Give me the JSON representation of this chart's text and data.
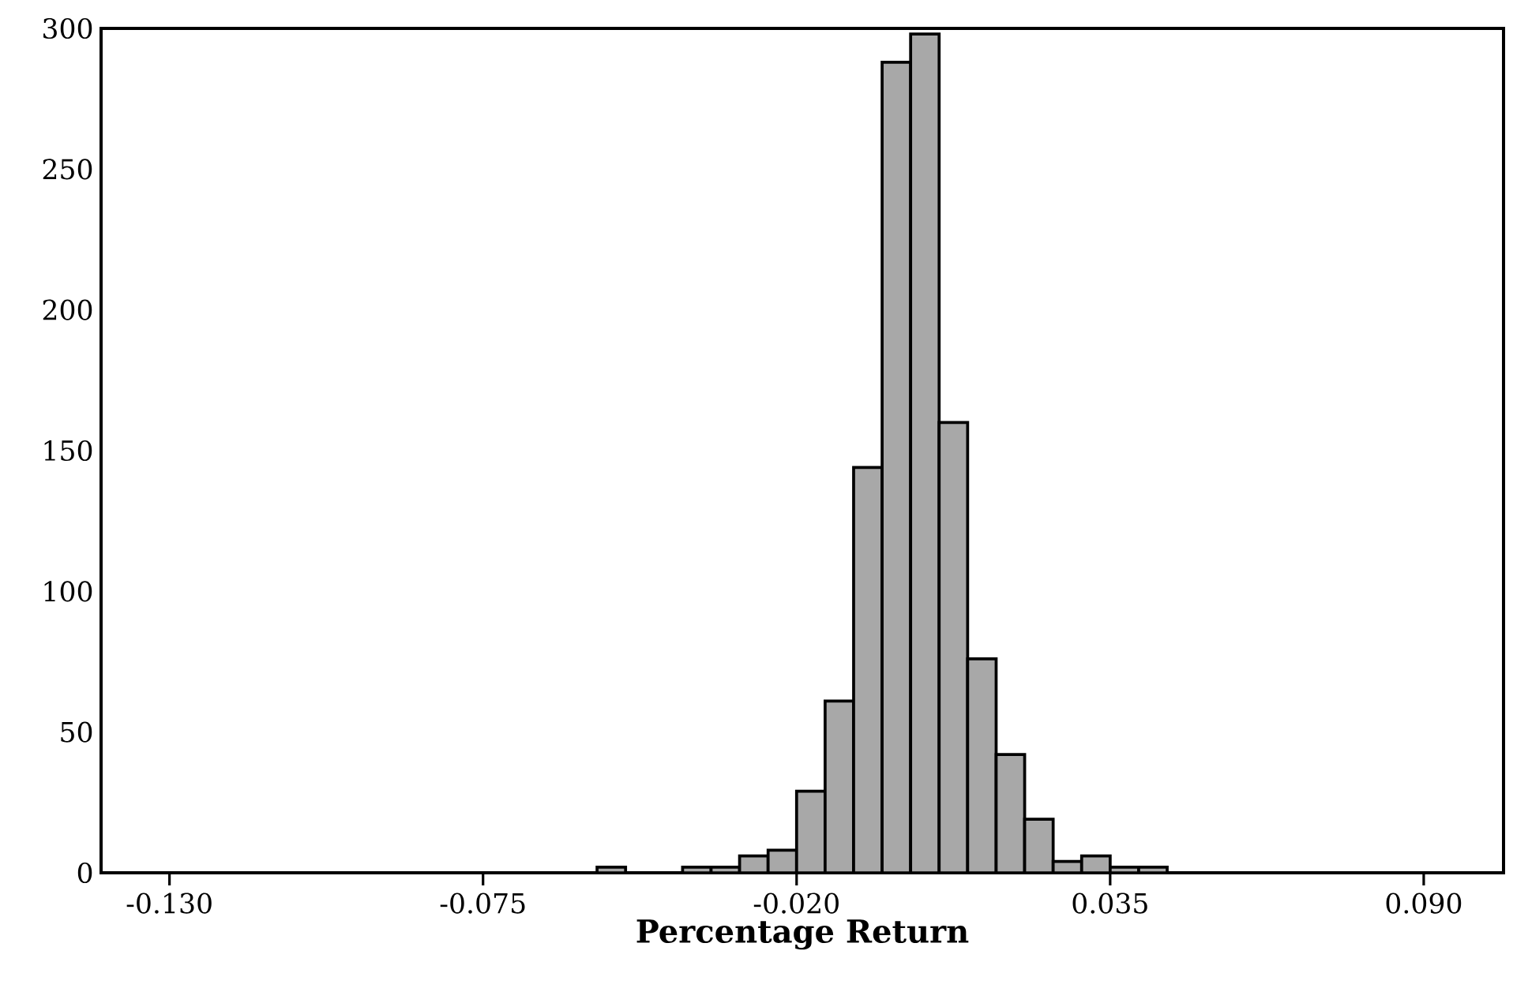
{
  "chart_data": {
    "type": "histogram",
    "xlabel": "Percentage Return",
    "bins": [
      -0.055,
      -0.05,
      -0.045,
      -0.04,
      -0.035,
      -0.03,
      -0.025,
      -0.02,
      -0.015,
      -0.01,
      -0.005,
      0.0,
      0.005,
      0.01,
      0.015,
      0.02,
      0.025,
      0.03,
      0.035,
      0.04,
      0.045
    ],
    "values": [
      2,
      0,
      0,
      2,
      2,
      6,
      8,
      29,
      61,
      144,
      288,
      298,
      160,
      76,
      42,
      19,
      4,
      6,
      2,
      2
    ],
    "color": "#a8a8a8",
    "xlim": [
      -0.142,
      0.104
    ],
    "ylim": [
      0,
      300
    ],
    "xticks": [
      {
        "value": -0.13,
        "label": "-0.130"
      },
      {
        "value": -0.075,
        "label": "-0.075"
      },
      {
        "value": -0.02,
        "label": "-0.020"
      },
      {
        "value": 0.035,
        "label": "0.035"
      },
      {
        "value": 0.09,
        "label": "0.090"
      }
    ],
    "yticks": [
      0,
      50,
      100,
      150,
      200,
      250,
      300
    ],
    "grid": false
  }
}
